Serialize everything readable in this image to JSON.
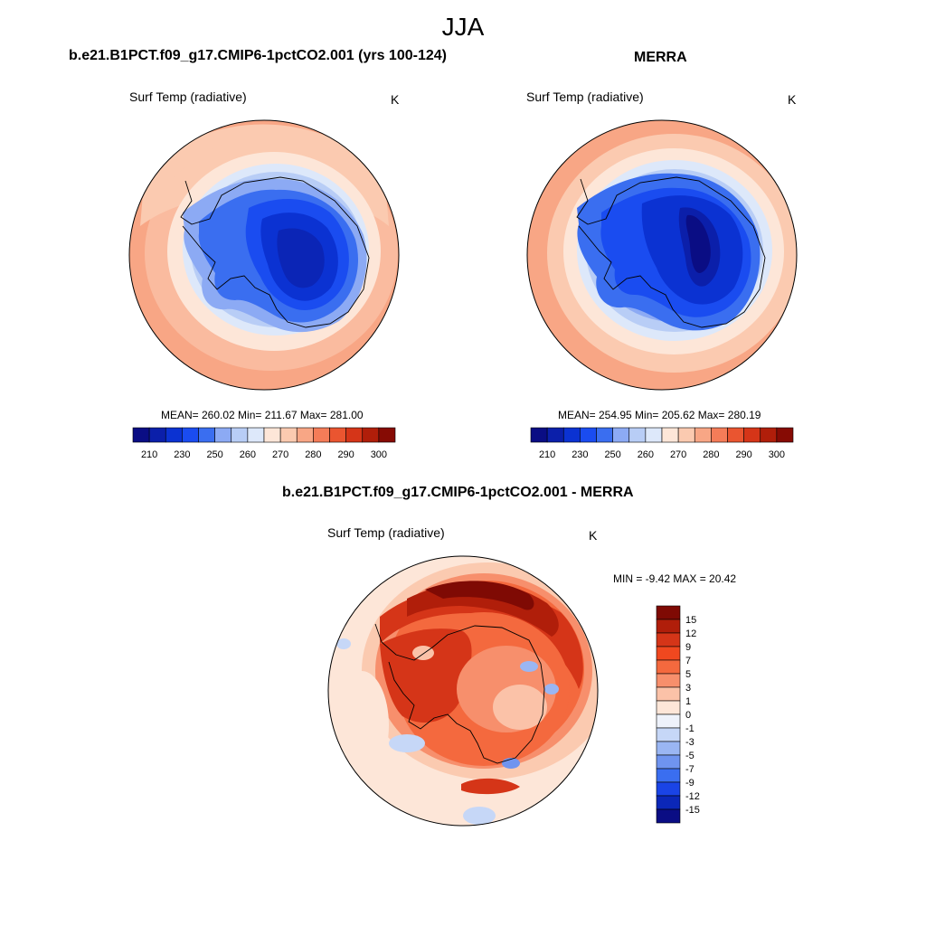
{
  "title": "JJA",
  "panels": [
    {
      "title": "b.e21.B1PCT.f09_g17.CMIP6-1pctCO2.001 (yrs 100-124)",
      "variable": "Surf Temp (radiative)",
      "units": "K",
      "stats": "MEAN= 260.02  Min= 211.67  Max= 281.00"
    },
    {
      "title": "MERRA",
      "variable": "Surf Temp (radiative)",
      "units": "K",
      "stats": "MEAN= 254.95  Min= 205.62  Max= 280.19"
    },
    {
      "title": "b.e21.B1PCT.f09_g17.CMIP6-1pctCO2.001 - MERRA",
      "variable": "Surf Temp (radiative)",
      "units": "K",
      "stats": "MIN =  -9.42 MAX =  20.42"
    }
  ],
  "colorbar_abs": {
    "labels": [
      "210",
      "230",
      "250",
      "260",
      "270",
      "280",
      "290",
      "300"
    ],
    "colors": [
      "#0a0d84",
      "#0b1faa",
      "#0b32d2",
      "#1a4cf0",
      "#3a6ef0",
      "#8caaf4",
      "#b8cdf6",
      "#dde8fa",
      "#fde6d8",
      "#fbcab0",
      "#f8a685",
      "#f47c58",
      "#ea5530",
      "#d53518",
      "#b01e0a",
      "#860b04"
    ]
  },
  "colorbar_diff": {
    "labels": [
      "15",
      "12",
      "9",
      "7",
      "5",
      "3",
      "1",
      "0",
      "-1",
      "-3",
      "-5",
      "-7",
      "-9",
      "-12",
      "-15"
    ],
    "colors": [
      "#7f0a04",
      "#b01e0a",
      "#d53518",
      "#f0481f",
      "#f4693e",
      "#f78f6c",
      "#fbc2a8",
      "#fde6d8",
      "#eef2fb",
      "#c6d7f7",
      "#9ab6f3",
      "#6f94ef",
      "#3a6ef0",
      "#1a44e6",
      "#0b27b8",
      "#0a0d84"
    ]
  },
  "chart_data": {
    "type": "heatmap",
    "season": "JJA",
    "maps": [
      {
        "name": "b.e21.B1PCT.f09_g17.CMIP6-1pctCO2.001 (yrs 100-124)",
        "variable": "Surf Temp (radiative)",
        "units": "K",
        "mean": 260.02,
        "min": 211.67,
        "max": 281.0
      },
      {
        "name": "MERRA",
        "variable": "Surf Temp (radiative)",
        "units": "K",
        "mean": 254.95,
        "min": 205.62,
        "max": 280.19
      },
      {
        "name": "b.e21.B1PCT.f09_g17.CMIP6-1pctCO2.001 - MERRA",
        "variable": "Surf Temp (radiative)",
        "units": "K",
        "min": -9.42,
        "max": 20.42
      }
    ]
  }
}
